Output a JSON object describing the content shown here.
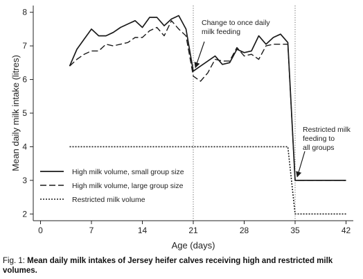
{
  "chart_data": {
    "type": "line",
    "xlabel": "Age (days)",
    "ylabel": "Mean daily milk intake (litres)",
    "xlim": [
      -1,
      43
    ],
    "ylim": [
      1.8,
      8.2
    ],
    "xticks": [
      0,
      7,
      14,
      21,
      28,
      35,
      42
    ],
    "yticks": [
      2,
      3,
      4,
      5,
      6,
      7,
      8
    ],
    "grid": false,
    "legend": "left-lower-middle",
    "reference_lines_x": [
      21,
      35
    ],
    "series": [
      {
        "name": "High milk volume, small group size",
        "style": "solid",
        "x": [
          4,
          5,
          6,
          7,
          8,
          9,
          10,
          11,
          12,
          13,
          14,
          15,
          16,
          17,
          18,
          19,
          20,
          21,
          22,
          23,
          24,
          25,
          26,
          27,
          28,
          29,
          30,
          31,
          32,
          33,
          34,
          35,
          36,
          37,
          38,
          39,
          40,
          41,
          42
        ],
        "y": [
          6.4,
          6.9,
          7.2,
          7.5,
          7.3,
          7.3,
          7.4,
          7.55,
          7.65,
          7.75,
          7.55,
          7.85,
          7.85,
          7.6,
          7.8,
          7.9,
          7.5,
          6.25,
          6.4,
          6.55,
          6.7,
          6.45,
          6.5,
          6.9,
          6.8,
          6.85,
          7.3,
          7.05,
          7.25,
          7.35,
          7.1,
          3.0,
          3.0,
          3.0,
          3.0,
          3.0,
          3.0,
          3.0,
          3.0
        ]
      },
      {
        "name": "High milk volume, large group size",
        "style": "dashed",
        "x": [
          4,
          5,
          6,
          7,
          8,
          9,
          10,
          11,
          12,
          13,
          14,
          15,
          16,
          17,
          18,
          19,
          20,
          21,
          22,
          23,
          24,
          25,
          26,
          27,
          28,
          29,
          30,
          31,
          32,
          33,
          34,
          35,
          36,
          37,
          38,
          39,
          40,
          41,
          42
        ],
        "y": [
          6.4,
          6.6,
          6.75,
          6.85,
          6.85,
          7.05,
          7.0,
          7.05,
          7.1,
          7.25,
          7.25,
          7.45,
          7.55,
          7.3,
          7.75,
          7.5,
          7.3,
          6.1,
          5.95,
          6.2,
          6.6,
          6.55,
          6.55,
          6.95,
          6.7,
          6.75,
          6.6,
          7.0,
          7.05,
          7.05,
          7.05,
          3.0,
          3.0,
          3.0,
          3.0,
          3.0,
          3.0,
          3.0,
          3.0
        ]
      },
      {
        "name": "Restricted milk volume",
        "style": "dotted",
        "x": [
          4,
          34,
          35,
          42
        ],
        "y": [
          4.0,
          4.0,
          2.0,
          2.0
        ]
      }
    ],
    "annotations": [
      {
        "lines": [
          "Change to once daily",
          "milk feeding"
        ],
        "arrow_to": [
          21,
          6.25
        ]
      },
      {
        "lines": [
          "Restricted milk",
          "feeding to",
          "all groups"
        ],
        "arrow_to": [
          35,
          3.0
        ]
      }
    ]
  },
  "caption": {
    "prefix": "Fig. 1: ",
    "text": "Mean daily milk intakes of Jersey heifer calves receiving high and restricted milk volumes."
  }
}
